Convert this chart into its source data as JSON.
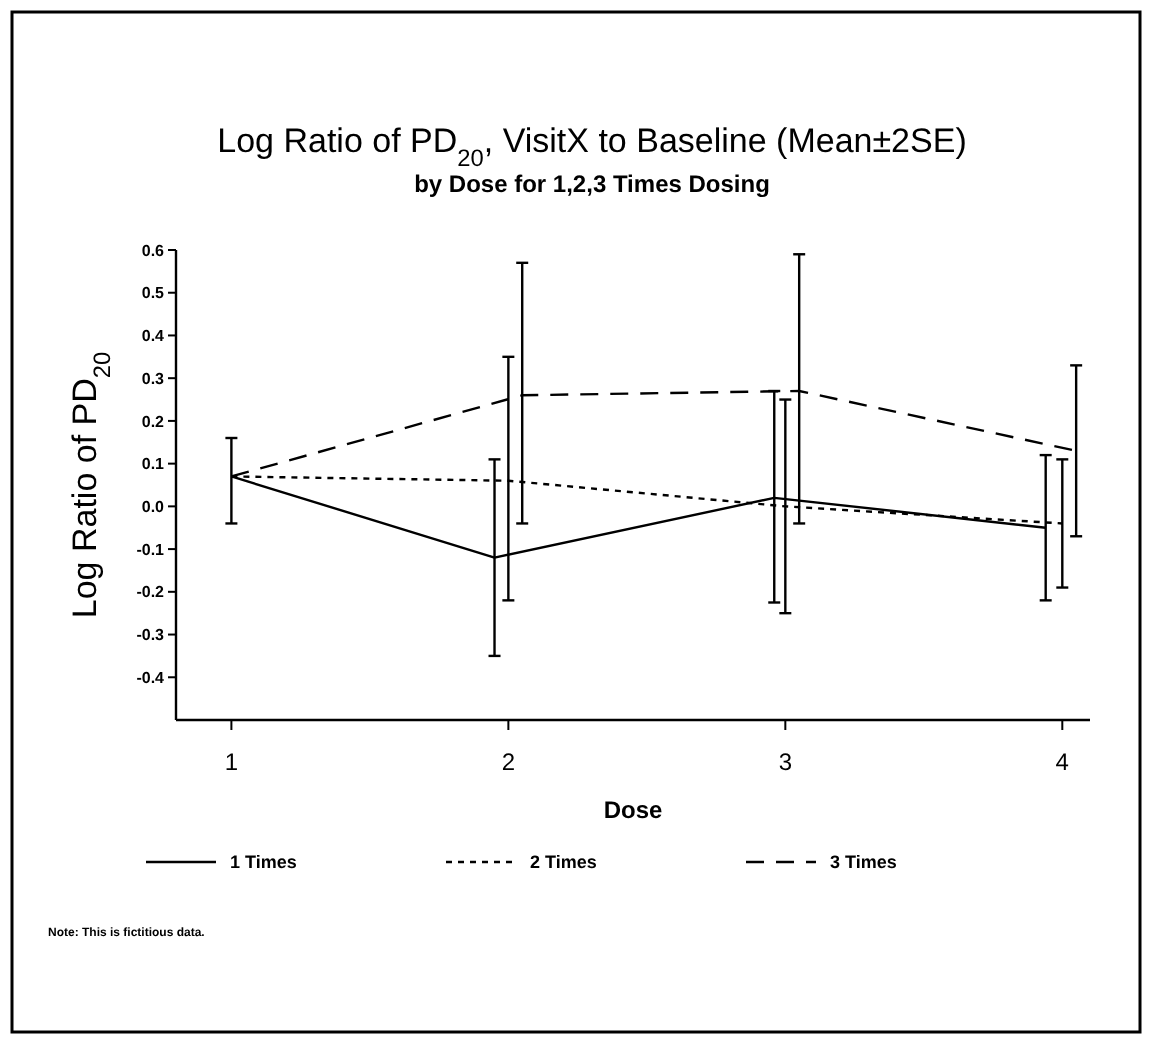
{
  "chart_data": {
    "type": "line",
    "title": "Log Ratio of PD$_{20}$, VisitX to Baseline (Mean±2SE)",
    "subtitle": "by Dose for 1,2,3 Times Dosing",
    "xlabel": "Dose",
    "ylabel": "Log Ratio of PD$_{20}$",
    "annotations": [
      "Note: This is fictitious data."
    ],
    "xlim": [
      0.8,
      4.1
    ],
    "xticks": [
      1,
      2,
      3,
      4
    ],
    "ylim": [
      -0.5,
      0.6
    ],
    "yticks": [
      0.6,
      0.5,
      0.4,
      0.3,
      0.2,
      0.1,
      {
        "value": 0,
        "label": "0.0"
      },
      -0.1,
      -0.2,
      -0.3,
      -0.4
    ],
    "grid": false,
    "legend": "bottom",
    "marker": "none",
    "series": [
      {
        "name": "1 Times",
        "color": "#000000",
        "line_style": "solid",
        "x": [
          1,
          1.95,
          2.96,
          3.94
        ],
        "values": [
          0.07,
          -0.12,
          0.02,
          -0.05
        ],
        "errors": [
          [
            -0.04,
            0.16
          ],
          [
            -0.35,
            0.11
          ],
          [
            -0.225,
            0.27
          ],
          [
            -0.22,
            0.12
          ]
        ]
      },
      {
        "name": "2 Times",
        "color": "#000000",
        "line_style": "dotted",
        "x": [
          1,
          2,
          3,
          4
        ],
        "values": [
          0.07,
          0.06,
          0.0,
          -0.04
        ],
        "errors": [
          null,
          [
            -0.22,
            0.35
          ],
          [
            -0.25,
            0.25
          ],
          [
            -0.19,
            0.11
          ]
        ]
      },
      {
        "name": "3 Times",
        "color": "#000000",
        "line_style": "dashed",
        "x": [
          1,
          2.05,
          3.05,
          4.05
        ],
        "values": [
          0.07,
          0.26,
          0.27,
          0.13
        ],
        "errors": [
          null,
          [
            -0.04,
            0.57
          ],
          [
            -0.04,
            0.59
          ],
          [
            -0.07,
            0.33
          ]
        ]
      }
    ]
  }
}
